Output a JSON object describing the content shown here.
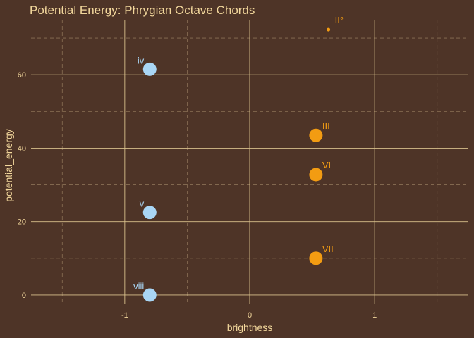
{
  "chart_data": {
    "type": "scatter",
    "title": "Potential Energy: Phrygian Octave Chords",
    "xlabel": "brightness",
    "ylabel": "potential_energy",
    "xlim": [
      -1.75,
      1.75
    ],
    "ylim": [
      -2.5,
      75
    ],
    "x_ticks": [
      -1,
      0,
      1
    ],
    "x_tick_labels": [
      "-1",
      "0",
      "1"
    ],
    "y_ticks": [
      0,
      20,
      40,
      60
    ],
    "y_tick_labels": [
      "0",
      "20",
      "40",
      "60"
    ],
    "grid": true,
    "points": [
      {
        "label": "II°",
        "x": 0.63,
        "y": 72.3,
        "size": "small",
        "group": "bright"
      },
      {
        "label": "iv",
        "x": -0.8,
        "y": 61.5,
        "size": "large",
        "group": "dark"
      },
      {
        "label": "III",
        "x": 0.53,
        "y": 43.5,
        "size": "large",
        "group": "bright"
      },
      {
        "label": "VI",
        "x": 0.53,
        "y": 32.8,
        "size": "large",
        "group": "bright"
      },
      {
        "label": "v",
        "x": -0.8,
        "y": 22.5,
        "size": "large",
        "group": "dark"
      },
      {
        "label": "VII",
        "x": 0.53,
        "y": 10.0,
        "size": "large",
        "group": "bright"
      },
      {
        "label": "viii",
        "x": -0.8,
        "y": 0,
        "size": "large",
        "group": "dark"
      }
    ],
    "colors": {
      "background": "#4e3427",
      "text": "#f2d79c",
      "grid_major": "#d8c08c",
      "grid_minor": "#8a7055",
      "bright": "#f39c12",
      "dark": "#a9d6f5"
    }
  }
}
